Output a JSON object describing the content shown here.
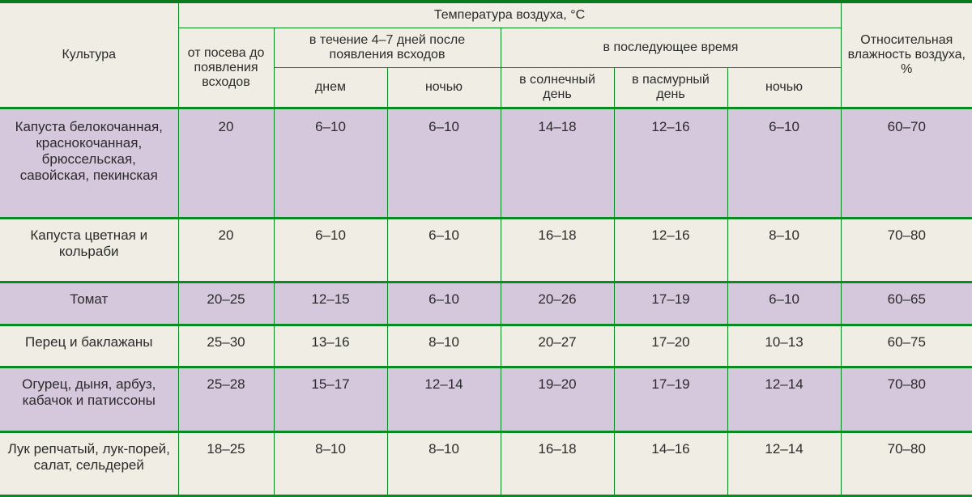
{
  "colors": {
    "border_green": "#0a8a23",
    "border_green_dark": "#0a7a1f",
    "header_bg": "#efede4",
    "row_alt_bg": "#d5c7dc",
    "row_bg": "#efede4",
    "text": "#2b2b2b",
    "cell_border": "#0a8a23"
  },
  "fonts": {
    "header_size": "16px",
    "cell_size": "17px"
  },
  "col_widths": [
    "220px",
    "118px",
    "140px",
    "140px",
    "140px",
    "140px",
    "140px",
    "162px"
  ],
  "header": {
    "culture": "Культура",
    "temp_title": "Температура воздуха, °С",
    "humidity": "Относительная влажность воздуха, %",
    "sowing": "от посева до появления всходов",
    "after_emerge": "в течение 4–7 дней после появления всходов",
    "later": "в последующее время",
    "day": "днем",
    "night": "ночью",
    "sunny": "в солнечный день",
    "cloudy": "в пасмурный день",
    "night2": "ночью"
  },
  "rows": [
    {
      "culture": "Капуста белокочанная, краснокочанная, брюссельская, савойская, пекинская",
      "sowing": "20",
      "day": "6–10",
      "night": "6–10",
      "sunny": "14–18",
      "cloudy": "12–16",
      "night2": "6–10",
      "humidity": "60–70",
      "alt": true,
      "tall": true
    },
    {
      "culture": "Капуста цветная и кольраби",
      "sowing": "20",
      "day": "6–10",
      "night": "6–10",
      "sunny": "16–18",
      "cloudy": "12–16",
      "night2": "8–10",
      "humidity": "70–80",
      "alt": false
    },
    {
      "culture": "Томат",
      "sowing": "20–25",
      "day": "12–15",
      "night": "6–10",
      "sunny": "20–26",
      "cloudy": "17–19",
      "night2": "6–10",
      "humidity": "60–65",
      "alt": true
    },
    {
      "culture": "Перец и баклажаны",
      "sowing": "25–30",
      "day": "13–16",
      "night": "8–10",
      "sunny": "20–27",
      "cloudy": "17–20",
      "night2": "10–13",
      "humidity": "60–75",
      "alt": false
    },
    {
      "culture": "Огурец, дыня, арбуз, кабачок и патиссоны",
      "sowing": "25–28",
      "day": "15–17",
      "night": "12–14",
      "sunny": "19–20",
      "cloudy": "17–19",
      "night2": "12–14",
      "humidity": "70–80",
      "alt": true
    },
    {
      "culture": "Лук репчатый, лук-порей, салат, сельдерей",
      "sowing": "18–25",
      "day": "8–10",
      "night": "8–10",
      "sunny": "16–18",
      "cloudy": "14–16",
      "night2": "12–14",
      "humidity": "70–80",
      "alt": false
    }
  ]
}
